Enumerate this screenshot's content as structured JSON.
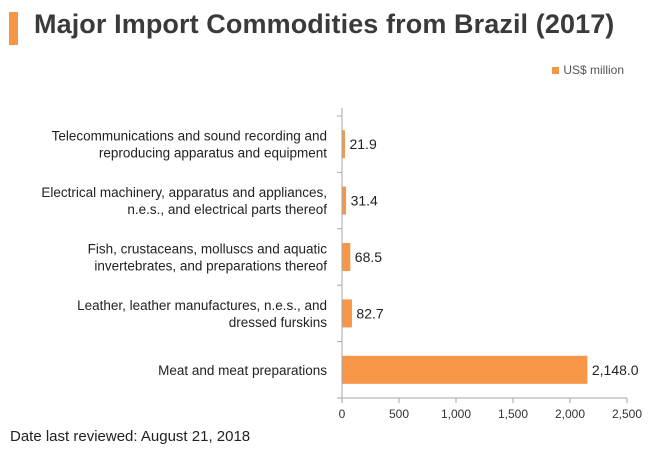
{
  "title": "Major Import Commodities from Brazil (2017)",
  "footer": "Date last reviewed: August 21, 2018",
  "colors": {
    "accent": "#f79646",
    "axis": "#a6a6a6"
  },
  "chart_data": {
    "type": "bar",
    "orientation": "horizontal",
    "categories": [
      [
        "Telecommunications and sound recording and",
        "reproducing apparatus and equipment"
      ],
      [
        "Electrical machinery, apparatus and appliances,",
        "n.e.s., and electrical parts thereof"
      ],
      [
        "Fish, crustaceans, molluscs and aquatic",
        "invertebrates, and preparations thereof"
      ],
      [
        "Leather, leather manufactures, n.e.s., and",
        "dressed furskins"
      ],
      [
        "Meat and meat preparations"
      ]
    ],
    "series": [
      {
        "name": "US$ million",
        "values": [
          21.9,
          31.4,
          68.5,
          82.7,
          2148.0
        ],
        "labels": [
          "21.9",
          "31.4",
          "68.5",
          "82.7",
          "2,148.0"
        ]
      }
    ],
    "xlim": [
      0,
      2500
    ],
    "xticks": [
      0,
      500,
      1000,
      1500,
      2000,
      2500
    ],
    "xtick_labels": [
      "0",
      "500",
      "1,000",
      "1,500",
      "2,000",
      "2,500"
    ],
    "legend_position": "top-right",
    "grid": false
  }
}
